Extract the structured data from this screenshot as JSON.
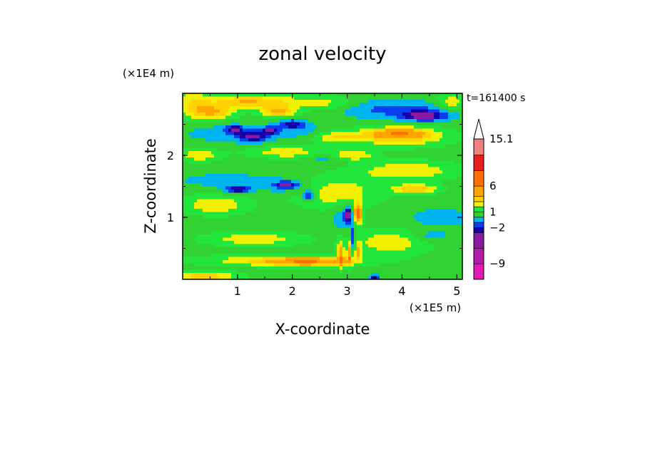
{
  "chart_data": {
    "type": "heatmap",
    "title": "zonal velocity",
    "xlabel": "X-coordinate",
    "ylabel": "Z-coordinate",
    "x_unit_label": "(×1E5 m)",
    "y_unit_label": "(×1E4 m)",
    "time_label": "t=161400 s",
    "xlim": [
      0,
      5.1
    ],
    "ylim": [
      0,
      3.0
    ],
    "xticks": [
      "1",
      "2",
      "3",
      "4",
      "5"
    ],
    "yticks": [
      "1",
      "2"
    ],
    "xtick_values": [
      1,
      2,
      3,
      4,
      5
    ],
    "ytick_values": [
      1,
      2
    ],
    "colorbar": {
      "labels": [
        "15.1",
        "6",
        "1",
        "−2",
        "−9"
      ],
      "label_values": [
        15.1,
        6,
        1,
        -2,
        -9
      ],
      "levels": [
        -12,
        -9,
        -6,
        -3,
        -2,
        -1,
        0,
        1,
        2,
        3,
        4,
        6,
        9,
        12,
        15.1
      ],
      "colors": [
        "#e418b4",
        "#b41aa8",
        "#8a1aa2",
        "#1400a6",
        "#0a3cf0",
        "#00b4f0",
        "#32d232",
        "#22e63c",
        "#f0f000",
        "#ffd200",
        "#ffa500",
        "#ff6e00",
        "#e61e1e",
        "#f08080",
        "#ffbebe"
      ],
      "extend_max": true
    },
    "field": {
      "background_value": 0.5,
      "blobs": [
        {
          "x": 0.2,
          "z": 2.85,
          "rx": 0.35,
          "rz": 0.22,
          "v": 2.3
        },
        {
          "x": 0.55,
          "z": 2.7,
          "rx": 0.4,
          "rz": 0.12,
          "v": 3.4
        },
        {
          "x": 1.0,
          "z": 2.88,
          "rx": 0.5,
          "rz": 0.1,
          "v": 2.4
        },
        {
          "x": 1.6,
          "z": 2.85,
          "rx": 0.6,
          "rz": 0.12,
          "v": 2.5
        },
        {
          "x": 1.75,
          "z": 2.7,
          "rx": 0.3,
          "rz": 0.08,
          "v": 3.5
        },
        {
          "x": 2.6,
          "z": 2.85,
          "rx": 0.55,
          "rz": 0.12,
          "v": 1.8
        },
        {
          "x": 3.55,
          "z": 2.75,
          "rx": 0.75,
          "rz": 0.15,
          "v": -1.5
        },
        {
          "x": 4.45,
          "z": 2.7,
          "rx": 0.65,
          "rz": 0.14,
          "v": -1.5
        },
        {
          "x": 4.4,
          "z": 2.63,
          "rx": 0.4,
          "rz": 0.07,
          "v": -3.3
        },
        {
          "x": 4.9,
          "z": 2.85,
          "rx": 0.25,
          "rz": 0.15,
          "v": 2.2
        },
        {
          "x": 0.9,
          "z": 2.35,
          "rx": 0.85,
          "rz": 0.14,
          "v": -1.2
        },
        {
          "x": 0.95,
          "z": 2.42,
          "rx": 0.15,
          "rz": 0.06,
          "v": -3.5
        },
        {
          "x": 1.3,
          "z": 2.3,
          "rx": 0.25,
          "rz": 0.08,
          "v": -3.5
        },
        {
          "x": 1.6,
          "z": 2.4,
          "rx": 0.15,
          "rz": 0.06,
          "v": -3.2
        },
        {
          "x": 2.0,
          "z": 2.5,
          "rx": 0.25,
          "rz": 0.07,
          "v": -3.2
        },
        {
          "x": 2.3,
          "z": 2.35,
          "rx": 0.5,
          "rz": 0.12,
          "v": -1.4
        },
        {
          "x": 2.75,
          "z": 2.3,
          "rx": 0.55,
          "rz": 0.1,
          "v": 2.6
        },
        {
          "x": 4.0,
          "z": 2.3,
          "rx": 0.9,
          "rz": 0.16,
          "v": 2.6
        },
        {
          "x": 3.95,
          "z": 2.35,
          "rx": 0.5,
          "rz": 0.09,
          "v": 3.6
        },
        {
          "x": 0.3,
          "z": 2.0,
          "rx": 0.4,
          "rz": 0.1,
          "v": 2.3
        },
        {
          "x": 1.9,
          "z": 2.05,
          "rx": 0.7,
          "rz": 0.1,
          "v": 2.2
        },
        {
          "x": 2.6,
          "z": 1.95,
          "rx": 0.3,
          "rz": 0.08,
          "v": -1.3
        },
        {
          "x": 3.1,
          "z": 2.0,
          "rx": 0.4,
          "rz": 0.08,
          "v": 2.4
        },
        {
          "x": 0.8,
          "z": 1.6,
          "rx": 0.8,
          "rz": 0.1,
          "v": -1.2
        },
        {
          "x": 1.0,
          "z": 1.45,
          "rx": 0.25,
          "rz": 0.06,
          "v": -3.5
        },
        {
          "x": 1.9,
          "z": 1.5,
          "rx": 0.5,
          "rz": 0.12,
          "v": -1.5
        },
        {
          "x": 1.9,
          "z": 1.52,
          "rx": 0.2,
          "rz": 0.05,
          "v": -3.3
        },
        {
          "x": 2.3,
          "z": 1.35,
          "rx": 0.12,
          "rz": 0.08,
          "v": -3.7
        },
        {
          "x": 2.8,
          "z": 1.4,
          "rx": 0.8,
          "rz": 0.25,
          "v": 2.2
        },
        {
          "x": 4.1,
          "z": 1.75,
          "rx": 0.9,
          "rz": 0.16,
          "v": 2.4
        },
        {
          "x": 4.25,
          "z": 1.45,
          "rx": 0.4,
          "rz": 0.08,
          "v": 3.5
        },
        {
          "x": 0.6,
          "z": 1.2,
          "rx": 0.6,
          "rz": 0.16,
          "v": 2.4
        },
        {
          "x": 3.2,
          "z": 1.05,
          "rx": 0.08,
          "rz": 0.15,
          "v": 6.5
        },
        {
          "x": 3.03,
          "z": 1.05,
          "rx": 0.06,
          "rz": 0.12,
          "v": -4.0
        },
        {
          "x": 2.95,
          "z": 1.0,
          "rx": 0.2,
          "rz": 0.2,
          "v": -1.6
        },
        {
          "x": 3.1,
          "z": 0.6,
          "rx": 0.04,
          "rz": 0.25,
          "v": -3.0
        },
        {
          "x": 2.88,
          "z": 0.4,
          "rx": 0.06,
          "rz": 0.2,
          "v": 4.2
        },
        {
          "x": 3.05,
          "z": 0.4,
          "rx": 0.05,
          "rz": 0.18,
          "v": 4.5
        },
        {
          "x": 3.2,
          "z": 0.45,
          "rx": 0.05,
          "rz": 0.12,
          "v": 3.8
        },
        {
          "x": 4.7,
          "z": 1.0,
          "rx": 0.5,
          "rz": 0.14,
          "v": -1.4
        },
        {
          "x": 4.5,
          "z": 0.7,
          "rx": 0.4,
          "rz": 0.1,
          "v": -1.3
        },
        {
          "x": 3.8,
          "z": 0.6,
          "rx": 0.7,
          "rz": 0.2,
          "v": 2.3
        },
        {
          "x": 1.3,
          "z": 0.65,
          "rx": 0.9,
          "rz": 0.12,
          "v": 2.2
        },
        {
          "x": 1.8,
          "z": 0.3,
          "rx": 1.5,
          "rz": 0.09,
          "v": 2.6
        },
        {
          "x": 2.3,
          "z": 0.28,
          "rx": 0.7,
          "rz": 0.07,
          "v": 3.5
        },
        {
          "x": 0.4,
          "z": 0.05,
          "rx": 0.6,
          "rz": 0.08,
          "v": 3.3
        },
        {
          "x": 3.5,
          "z": 0.03,
          "rx": 0.08,
          "rz": 0.05,
          "v": -3.4
        }
      ]
    }
  }
}
